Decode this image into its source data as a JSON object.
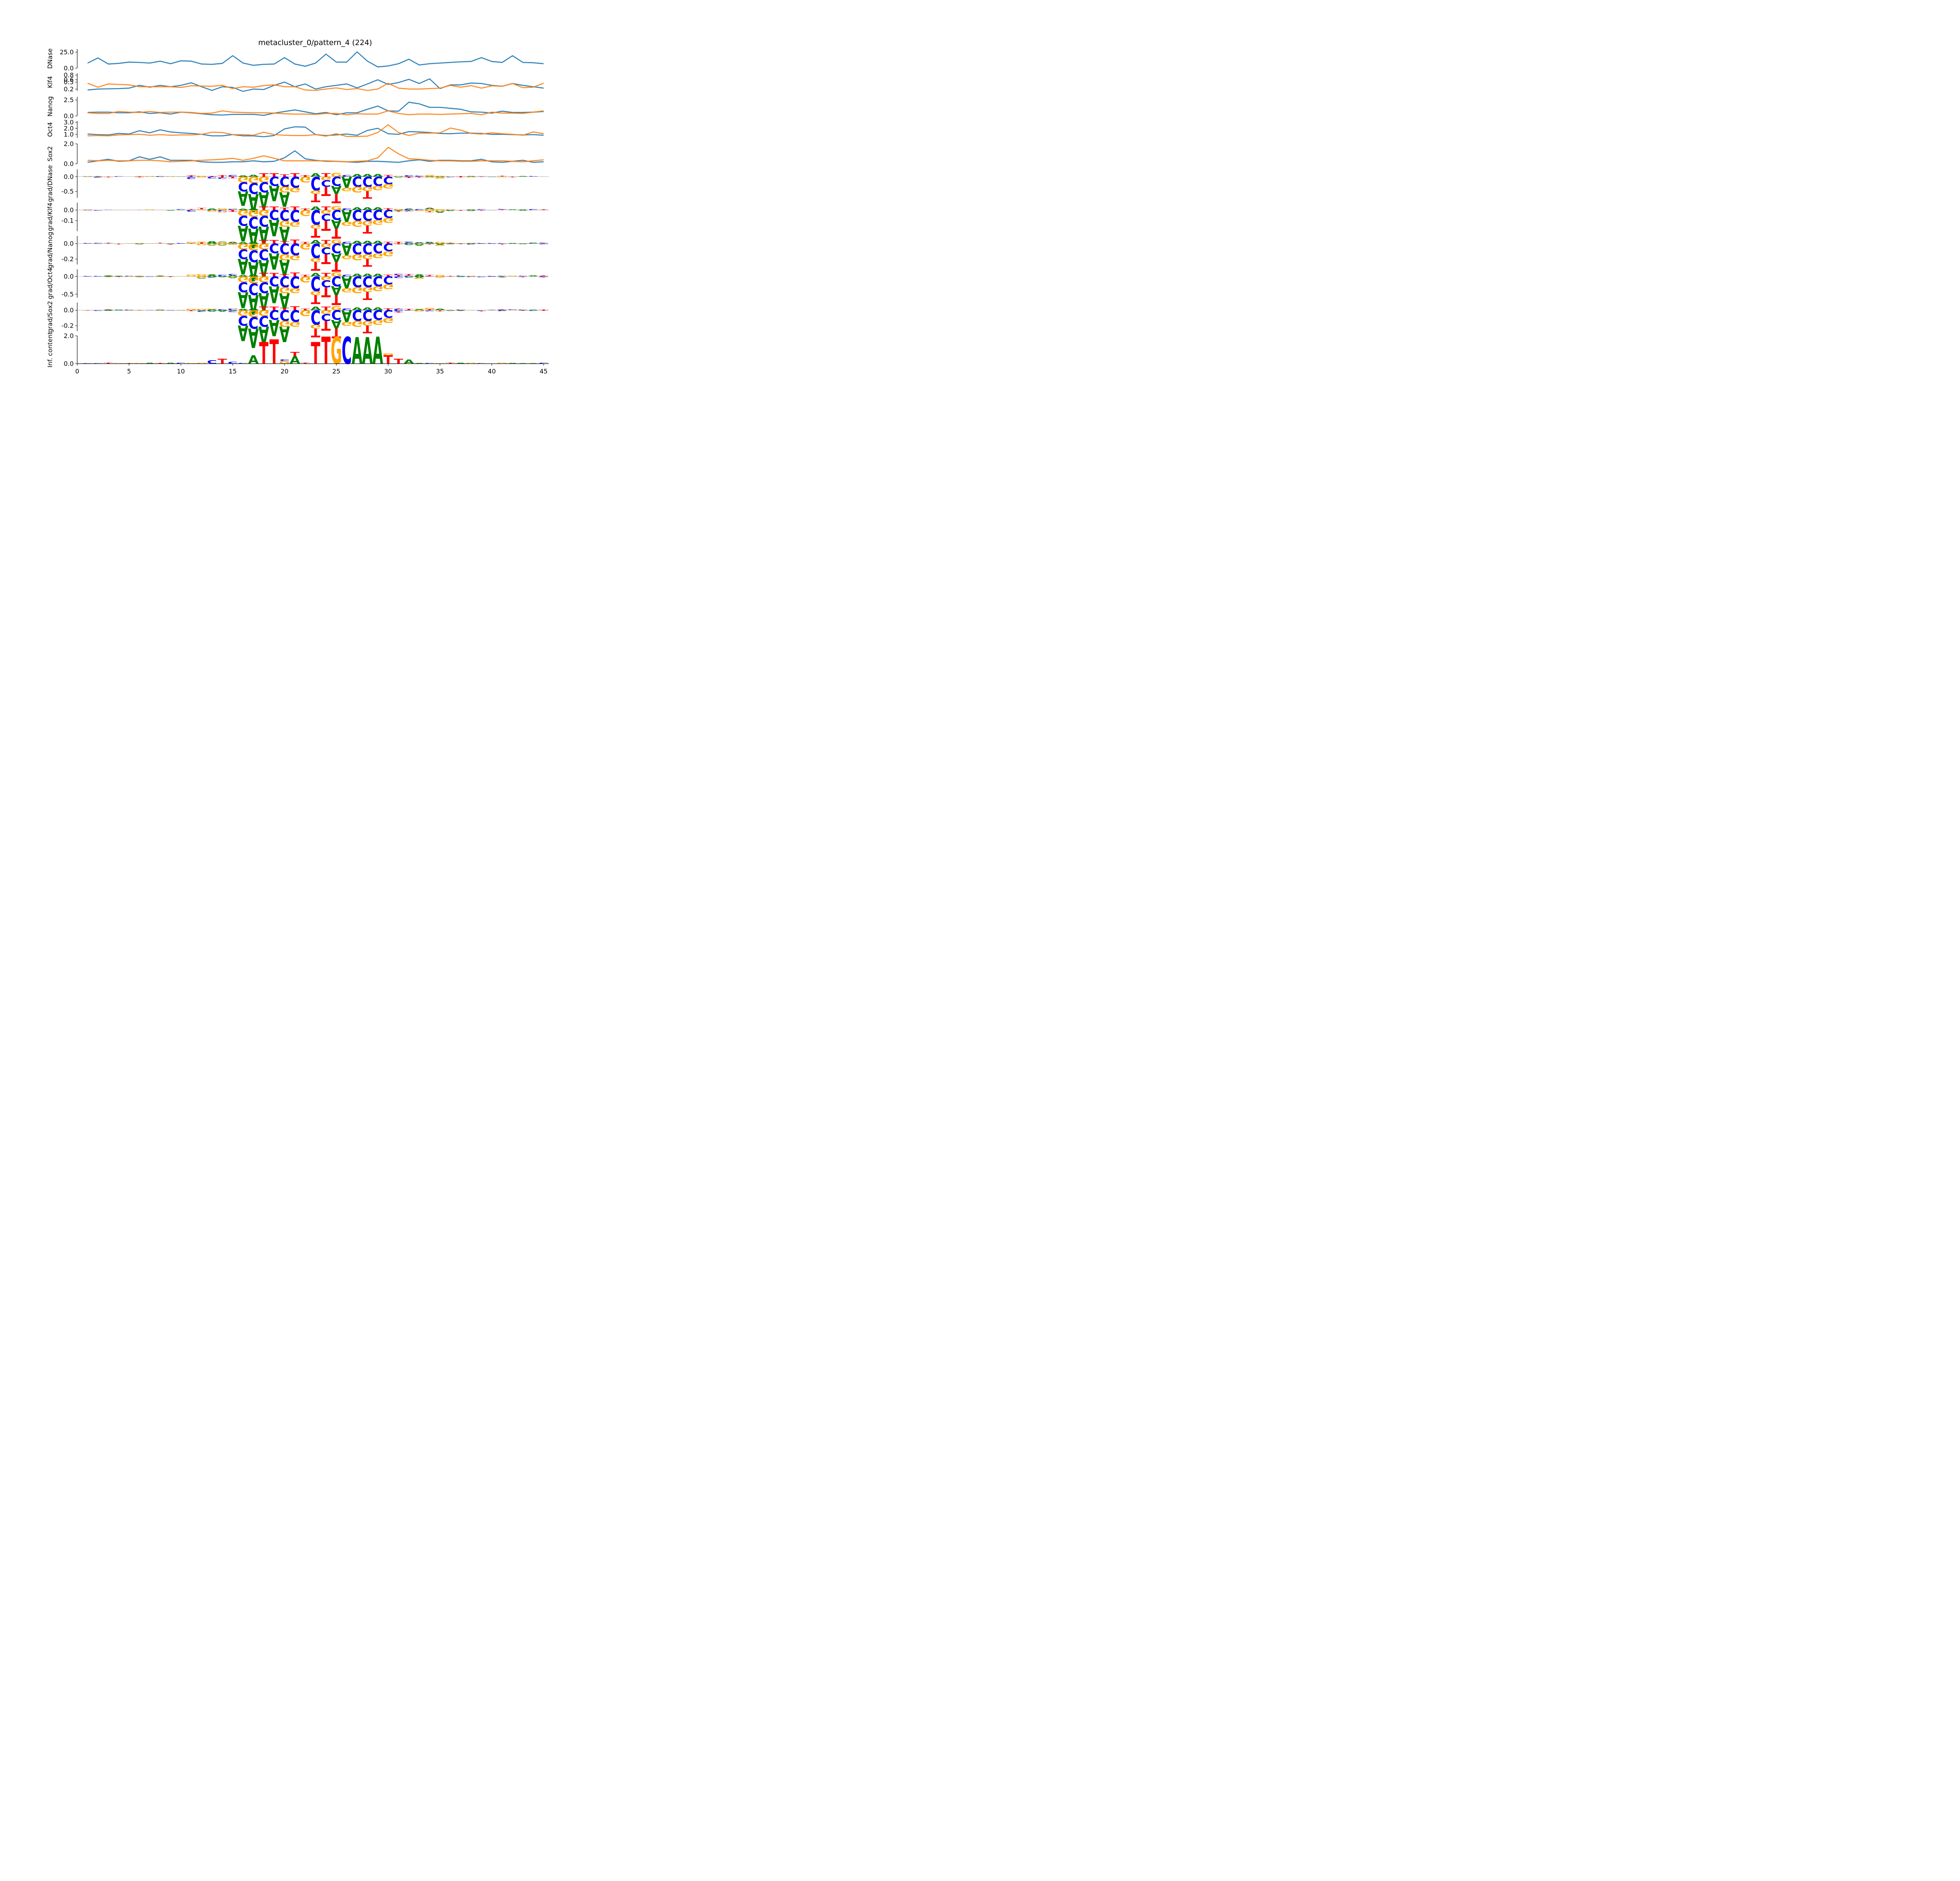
{
  "chart_data": {
    "type": "line",
    "title": "metacluster_0/pattern_4 (224)",
    "xlabel": "",
    "xlim": [
      0,
      45.5
    ],
    "xticks": [
      "0",
      "5",
      "10",
      "15",
      "20",
      "25",
      "30",
      "35",
      "40",
      "45"
    ],
    "colors": {
      "pos_strand": "#1f77b4",
      "neg_strand": "#ff7f0e",
      "A": "#008000",
      "C": "#0000ff",
      "G": "#ffa500",
      "T": "#ff0000"
    },
    "profile_panels": [
      {
        "ylabel": "DNase",
        "yticks": [
          "0.0",
          "25.0"
        ],
        "ylim": [
          0,
          30
        ],
        "series": [
          {
            "name": "pos",
            "values": [
              8,
              16,
              6.5,
              7.5,
              9.5,
              9,
              8,
              11,
              7,
              11.5,
              11,
              6.5,
              6,
              7.5,
              19.5,
              8,
              4.5,
              6,
              6.5,
              16.5,
              6.5,
              3,
              8,
              22,
              9.5,
              9.5,
              25.5,
              11,
              2,
              3.5,
              7,
              14,
              5,
              7,
              8,
              9,
              10,
              10.5,
              16.5,
              10.5,
              9,
              19.5,
              9,
              8.5,
              7
            ]
          }
        ]
      },
      {
        "ylabel": "Klf4",
        "yticks": [
          "0.2",
          "0.5",
          "0.6",
          "0.8"
        ],
        "ylim": [
          0.12,
          0.88
        ],
        "series": [
          {
            "name": "pos",
            "values": [
              0.16,
              0.2,
              0.21,
              0.22,
              0.24,
              0.36,
              0.28,
              0.36,
              0.3,
              0.36,
              0.47,
              0.3,
              0.14,
              0.3,
              0.27,
              0.1,
              0.2,
              0.18,
              0.36,
              0.5,
              0.3,
              0.42,
              0.2,
              0.3,
              0.36,
              0.42,
              0.25,
              0.42,
              0.6,
              0.4,
              0.48,
              0.62,
              0.44,
              0.64,
              0.22,
              0.38,
              0.38,
              0.46,
              0.44,
              0.36,
              0.32,
              0.44,
              0.36,
              0.3,
              0.24
            ]
          },
          {
            "name": "neg",
            "values": [
              0.45,
              0.28,
              0.42,
              0.4,
              0.38,
              0.3,
              0.3,
              0.3,
              0.3,
              0.27,
              0.34,
              0.33,
              0.32,
              0.36,
              0.22,
              0.3,
              0.28,
              0.35,
              0.38,
              0.3,
              0.3,
              0.16,
              0.14,
              0.2,
              0.25,
              0.18,
              0.22,
              0.14,
              0.2,
              0.45,
              0.24,
              0.2,
              0.2,
              0.22,
              0.24,
              0.36,
              0.28,
              0.35,
              0.24,
              0.34,
              0.32,
              0.44,
              0.26,
              0.28,
              0.45
            ]
          }
        ]
      },
      {
        "ylabel": "Nanog",
        "yticks": [
          "0.0",
          "2.5"
        ],
        "ylim": [
          0,
          3.0
        ],
        "series": [
          {
            "name": "pos",
            "values": [
              0.55,
              0.6,
              0.6,
              0.5,
              0.5,
              0.65,
              0.4,
              0.5,
              0.3,
              0.6,
              0.5,
              0.35,
              0.2,
              0.15,
              0.25,
              0.25,
              0.25,
              0.1,
              0.45,
              0.7,
              0.95,
              0.65,
              0.35,
              0.55,
              0.2,
              0.5,
              0.5,
              1.05,
              1.55,
              0.8,
              0.75,
              2.15,
              1.9,
              1.35,
              1.35,
              1.2,
              1.05,
              0.65,
              0.6,
              0.45,
              0.75,
              0.55,
              0.55,
              0.6,
              0.7
            ]
          },
          {
            "name": "neg",
            "values": [
              0.5,
              0.4,
              0.4,
              0.7,
              0.6,
              0.55,
              0.7,
              0.55,
              0.6,
              0.6,
              0.55,
              0.4,
              0.45,
              0.8,
              0.6,
              0.55,
              0.5,
              0.5,
              0.45,
              0.35,
              0.3,
              0.3,
              0.25,
              0.4,
              0.4,
              0.2,
              0.35,
              0.3,
              0.3,
              0.8,
              0.4,
              0.2,
              0.3,
              0.3,
              0.25,
              0.3,
              0.35,
              0.4,
              0.2,
              0.6,
              0.45,
              0.45,
              0.4,
              0.6,
              0.8
            ]
          }
        ]
      },
      {
        "ylabel": "Oct4",
        "yticks": [
          "1.0",
          "2.0",
          "3.0"
        ],
        "ylim": [
          0.4,
          3.2
        ],
        "series": [
          {
            "name": "pos",
            "values": [
              1.05,
              0.95,
              0.9,
              1.15,
              1.05,
              1.6,
              1.25,
              1.75,
              1.4,
              1.25,
              1.15,
              1.0,
              0.75,
              0.75,
              0.95,
              0.75,
              0.75,
              0.6,
              0.8,
              1.9,
              2.25,
              2.2,
              0.95,
              0.8,
              0.9,
              1.05,
              0.85,
              1.65,
              2.0,
              1.1,
              1.0,
              1.45,
              1.4,
              1.3,
              1.15,
              1.1,
              1.2,
              1.2,
              1.15,
              1.0,
              1.0,
              0.95,
              0.9,
              0.95,
              0.85
            ]
          },
          {
            "name": "neg",
            "values": [
              0.75,
              0.8,
              0.75,
              0.9,
              0.95,
              1.0,
              0.85,
              0.95,
              0.85,
              0.9,
              0.9,
              1.0,
              1.35,
              1.3,
              0.95,
              0.95,
              0.85,
              1.35,
              0.95,
              0.85,
              0.8,
              0.8,
              0.95,
              0.7,
              1.1,
              0.65,
              0.65,
              0.7,
              1.3,
              2.6,
              1.3,
              0.8,
              1.2,
              1.2,
              1.25,
              2.05,
              1.7,
              1.15,
              1.05,
              1.25,
              1.1,
              1.0,
              0.85,
              1.4,
              1.1
            ]
          }
        ]
      },
      {
        "ylabel": "Sox2",
        "yticks": [
          "0.0",
          "2.0"
        ],
        "ylim": [
          0,
          2.0
        ],
        "series": [
          {
            "name": "pos",
            "values": [
              0.15,
              0.3,
              0.45,
              0.25,
              0.3,
              0.7,
              0.45,
              0.7,
              0.35,
              0.35,
              0.35,
              0.2,
              0.15,
              0.15,
              0.2,
              0.2,
              0.3,
              0.2,
              0.25,
              0.6,
              1.3,
              0.5,
              0.35,
              0.25,
              0.25,
              0.2,
              0.15,
              0.25,
              0.25,
              0.2,
              0.15,
              0.3,
              0.4,
              0.25,
              0.35,
              0.35,
              0.3,
              0.3,
              0.45,
              0.2,
              0.15,
              0.25,
              0.35,
              0.15,
              0.2
            ]
          },
          {
            "name": "neg",
            "values": [
              0.35,
              0.3,
              0.35,
              0.3,
              0.3,
              0.35,
              0.35,
              0.3,
              0.2,
              0.25,
              0.3,
              0.35,
              0.4,
              0.45,
              0.55,
              0.35,
              0.55,
              0.8,
              0.55,
              0.3,
              0.3,
              0.3,
              0.3,
              0.3,
              0.25,
              0.2,
              0.25,
              0.3,
              0.6,
              1.65,
              1.0,
              0.5,
              0.45,
              0.35,
              0.3,
              0.3,
              0.25,
              0.25,
              0.3,
              0.3,
              0.3,
              0.25,
              0.2,
              0.3,
              0.4
            ]
          }
        ]
      }
    ],
    "logo_panels": [
      {
        "ylabel": "grad/DNase",
        "yticks": [
          "0.0",
          "-0.5"
        ],
        "ylim": [
          -0.72,
          0.25
        ],
        "pos_scale": 0.13,
        "neg_scale": 0.62
      },
      {
        "ylabel": "grad/Klf4",
        "yticks": [
          "0.0",
          "-0.1"
        ],
        "ylim": [
          -0.2,
          0.07
        ],
        "pos_scale": 0.036,
        "neg_scale": 0.185
      },
      {
        "ylabel": "grad/Nanog",
        "yticks": [
          "0.0",
          "-0.2"
        ],
        "ylim": [
          -0.27,
          0.1
        ],
        "pos_scale": 0.05,
        "neg_scale": 0.25
      },
      {
        "ylabel": "grad/Oct4",
        "yticks": [
          "0.0",
          "-0.5"
        ],
        "ylim": [
          -0.6,
          0.2
        ],
        "pos_scale": 0.11,
        "neg_scale": 0.55
      },
      {
        "ylabel": "grad/Sox2",
        "yticks": [
          "0.0",
          "-0.2"
        ],
        "ylim": [
          -0.27,
          0.1
        ],
        "pos_scale": 0.05,
        "neg_scale": 0.25
      }
    ],
    "grad_logo": [
      {
        "pos": 16,
        "top": [
          [
            "A",
            0.3
          ]
        ],
        "bottom": [
          [
            "G",
            0.3
          ],
          [
            "C",
            0.5
          ],
          [
            "A",
            0.8
          ]
        ]
      },
      {
        "pos": 17,
        "top": [
          [
            "A",
            0.55
          ]
        ],
        "bottom": [
          [
            "G",
            0.35
          ],
          [
            "C",
            0.6
          ],
          [
            "A",
            1.0
          ]
        ]
      },
      {
        "pos": 18,
        "top": [
          [
            "T",
            0.9
          ]
        ],
        "bottom": [
          [
            "G",
            0.3
          ],
          [
            "C",
            0.55
          ],
          [
            "A",
            0.9
          ]
        ]
      },
      {
        "pos": 19,
        "top": [
          [
            "T",
            0.9
          ]
        ],
        "bottom": [
          [
            "C",
            0.5
          ],
          [
            "A",
            0.85
          ]
        ]
      },
      {
        "pos": 20,
        "top": [
          [
            "T",
            0.6
          ]
        ],
        "bottom": [
          [
            "C",
            0.55
          ],
          [
            "G",
            0.3
          ],
          [
            "A",
            0.8
          ]
        ]
      },
      {
        "pos": 21,
        "top": [
          [
            "T",
            0.95
          ]
        ],
        "bottom": [
          [
            "C",
            0.6
          ],
          [
            "G",
            0.25
          ]
        ]
      },
      {
        "pos": 22,
        "top": [
          [
            "T",
            0.4
          ]
        ],
        "bottom": [
          [
            "G",
            0.3
          ]
        ]
      },
      {
        "pos": 23,
        "top": [
          [
            "A",
            0.9
          ]
        ],
        "bottom": [
          [
            "C",
            0.75
          ],
          [
            "G",
            0.2
          ],
          [
            "T",
            0.45
          ]
        ]
      },
      {
        "pos": 24,
        "top": [
          [
            "T",
            0.9
          ]
        ],
        "bottom": [
          [
            "G",
            0.2
          ],
          [
            "C",
            0.35
          ],
          [
            "T",
            0.5
          ]
        ]
      },
      {
        "pos": 25,
        "top": [
          [
            "G",
            1.0
          ]
        ],
        "bottom": [
          [
            "C",
            0.5
          ],
          [
            "A",
            0.45
          ],
          [
            "T",
            0.5
          ]
        ]
      },
      {
        "pos": 26,
        "top": [
          [
            "C",
            0.45
          ]
        ],
        "bottom": [
          [
            "A",
            0.6
          ],
          [
            "G",
            0.2
          ]
        ]
      },
      {
        "pos": 27,
        "top": [
          [
            "A",
            0.7
          ]
        ],
        "bottom": [
          [
            "C",
            0.55
          ],
          [
            "G",
            0.3
          ]
        ]
      },
      {
        "pos": 28,
        "top": [
          [
            "A",
            0.7
          ]
        ],
        "bottom": [
          [
            "C",
            0.55
          ],
          [
            "G",
            0.25
          ],
          [
            "T",
            0.4
          ]
        ]
      },
      {
        "pos": 29,
        "top": [
          [
            "A",
            0.7
          ]
        ],
        "bottom": [
          [
            "C",
            0.5
          ],
          [
            "G",
            0.25
          ]
        ]
      },
      {
        "pos": 30,
        "top": [
          [
            "T",
            0.45
          ]
        ],
        "bottom": [
          [
            "C",
            0.4
          ],
          [
            "G",
            0.25
          ]
        ]
      }
    ],
    "info_logo": {
      "ylabel": "Inf. content",
      "yticks": [
        "0.0",
        "2.0"
      ],
      "ylim": [
        0,
        2.0
      ],
      "columns": [
        {
          "pos": 13,
          "stack": [
            [
              "C",
              0.25
            ]
          ]
        },
        {
          "pos": 14,
          "stack": [
            [
              "T",
              0.35
            ]
          ]
        },
        {
          "pos": 15,
          "stack": [
            [
              "C",
              0.15
            ]
          ]
        },
        {
          "pos": 17,
          "stack": [
            [
              "A",
              0.6
            ]
          ]
        },
        {
          "pos": 18,
          "stack": [
            [
              "T",
              1.55
            ]
          ]
        },
        {
          "pos": 19,
          "stack": [
            [
              "T",
              1.75
            ]
          ]
        },
        {
          "pos": 20,
          "stack": [
            [
              "G",
              0.2
            ],
            [
              "C",
              0.1
            ]
          ]
        },
        {
          "pos": 21,
          "stack": [
            [
              "A",
              0.55
            ],
            [
              "T",
              0.3
            ]
          ]
        },
        {
          "pos": 23,
          "stack": [
            [
              "T",
              1.55
            ]
          ]
        },
        {
          "pos": 24,
          "stack": [
            [
              "T",
              1.95
            ]
          ]
        },
        {
          "pos": 25,
          "stack": [
            [
              "G",
              1.95
            ]
          ]
        },
        {
          "pos": 26,
          "stack": [
            [
              "C",
              1.95
            ]
          ]
        },
        {
          "pos": 27,
          "stack": [
            [
              "A",
              1.9
            ]
          ]
        },
        {
          "pos": 28,
          "stack": [
            [
              "A",
              1.9
            ]
          ]
        },
        {
          "pos": 29,
          "stack": [
            [
              "A",
              1.95
            ]
          ]
        },
        {
          "pos": 30,
          "stack": [
            [
              "T",
              0.6
            ],
            [
              "G",
              0.15
            ]
          ]
        },
        {
          "pos": 31,
          "stack": [
            [
              "T",
              0.35
            ]
          ]
        },
        {
          "pos": 32,
          "stack": [
            [
              "A",
              0.3
            ]
          ]
        }
      ]
    }
  }
}
